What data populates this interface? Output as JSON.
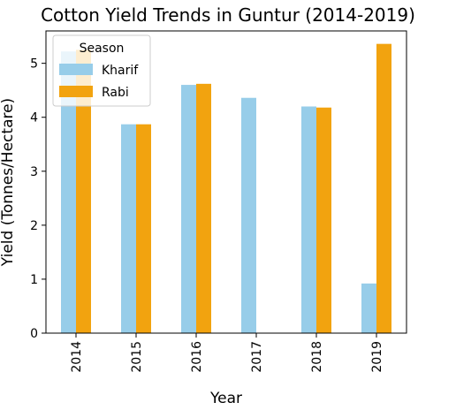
{
  "chart_data": {
    "type": "bar",
    "title": "Cotton Yield Trends in Guntur (2014-2019)",
    "xlabel": "Year",
    "ylabel": "Yield (Tonnes/Hectare)",
    "categories": [
      "2014",
      "2015",
      "2016",
      "2017",
      "2018",
      "2019"
    ],
    "ylim": [
      0,
      5.6
    ],
    "yticks": [
      0,
      1,
      2,
      3,
      4,
      5
    ],
    "grid": false,
    "legend": {
      "title": "Season",
      "position": "top-left"
    },
    "series": [
      {
        "name": "Kharif",
        "color": "#97cde9",
        "values": [
          5.22,
          3.87,
          4.6,
          4.36,
          4.2,
          0.92
        ]
      },
      {
        "name": "Rabi",
        "color": "#f2a30f",
        "values": [
          5.25,
          3.87,
          4.62,
          null,
          4.18,
          5.36
        ]
      }
    ]
  }
}
